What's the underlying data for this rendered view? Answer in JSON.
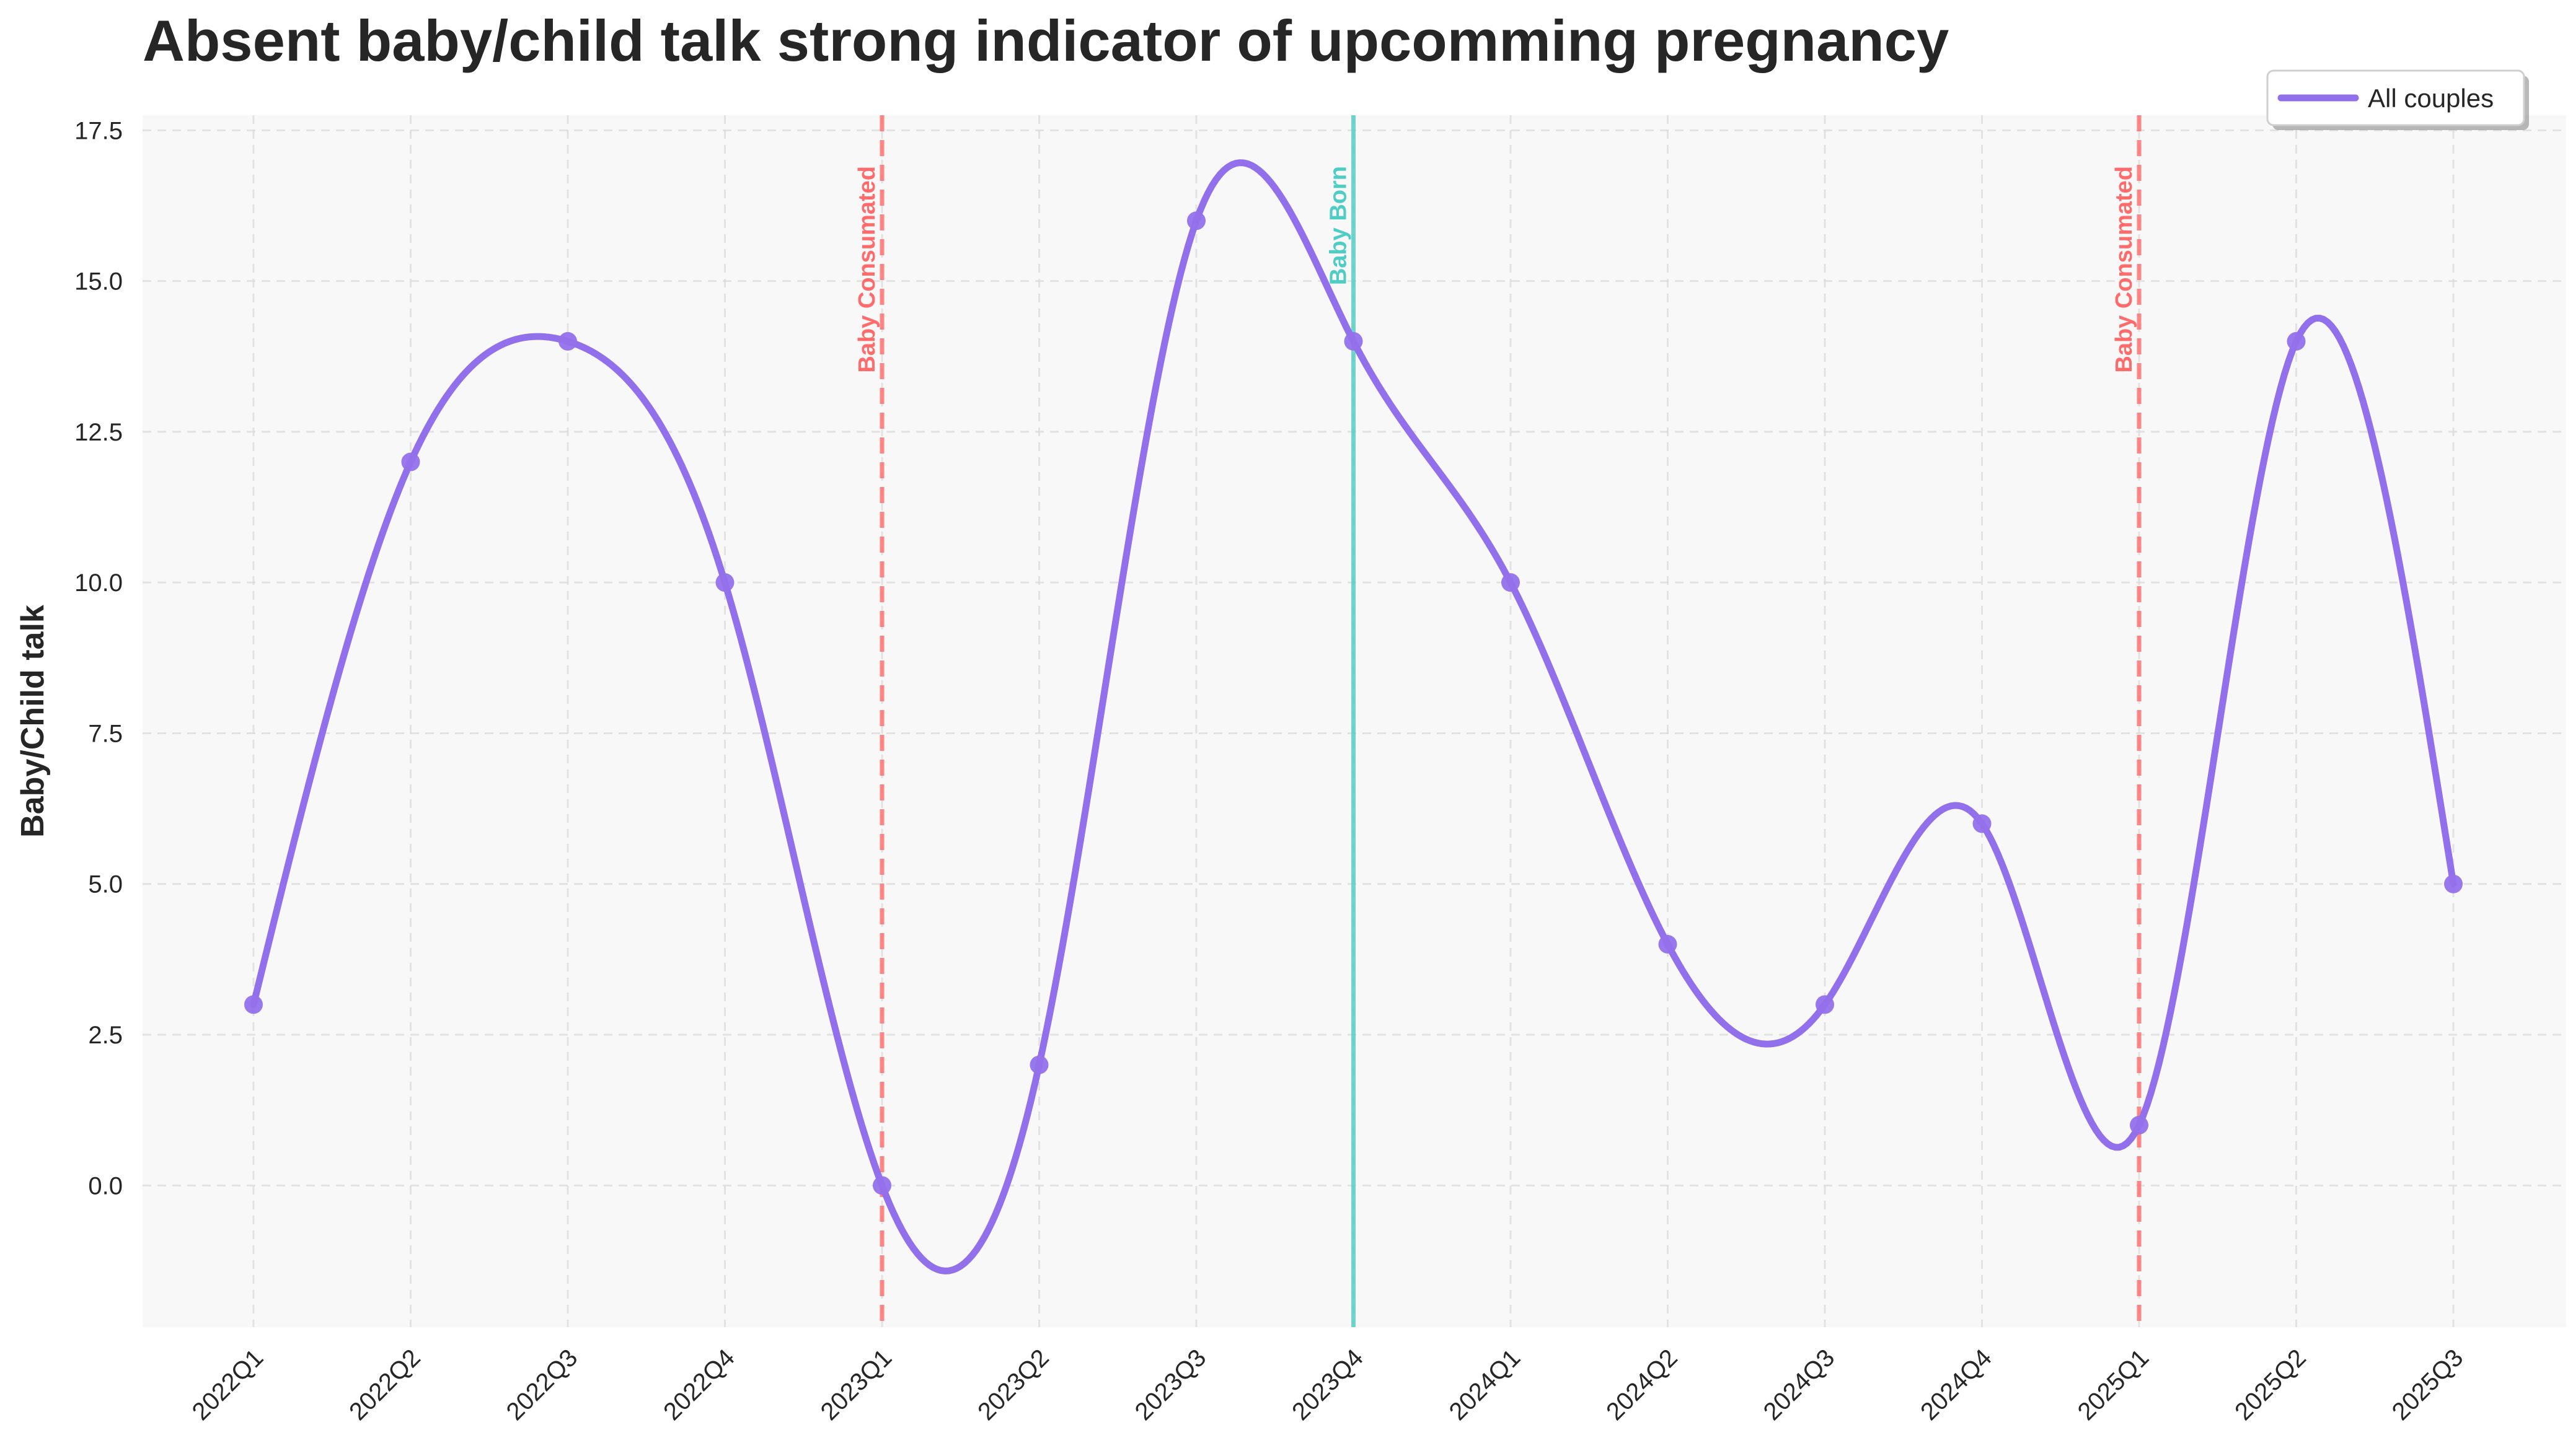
{
  "chart_data": {
    "type": "line",
    "title": "Absent baby/child talk strong indicator of upcomming pregnancy",
    "xlabel": "",
    "ylabel": "Baby/Child talk",
    "categories": [
      "2022Q1",
      "2022Q2",
      "2022Q3",
      "2022Q4",
      "2023Q1",
      "2023Q2",
      "2023Q3",
      "2023Q4",
      "2024Q1",
      "2024Q2",
      "2024Q3",
      "2024Q4",
      "2025Q1",
      "2025Q2",
      "2025Q3"
    ],
    "series": [
      {
        "name": "All couples",
        "color": "#9370EB",
        "values": [
          3,
          12,
          14,
          10,
          0,
          2,
          16,
          14,
          10,
          4,
          3,
          6,
          1,
          14,
          5
        ]
      }
    ],
    "ylim": [
      -2.35,
      17.75
    ],
    "yticks": [
      "0.0",
      "2.5",
      "5.0",
      "7.5",
      "10.0",
      "12.5",
      "15.0",
      "17.5"
    ],
    "grid": true,
    "legend_position": "top-right",
    "annotations": [
      {
        "at": "2023Q1",
        "label": "Baby Consumated",
        "color": "#FF6B6B",
        "style": "dashed"
      },
      {
        "at": "2023Q4",
        "label": "Baby Born",
        "color": "#4ECDC4",
        "style": "solid"
      },
      {
        "at": "2025Q1",
        "label": "Baby Consumated",
        "color": "#FF6B6B",
        "style": "dashed"
      }
    ],
    "background": "#F8F8F8"
  }
}
